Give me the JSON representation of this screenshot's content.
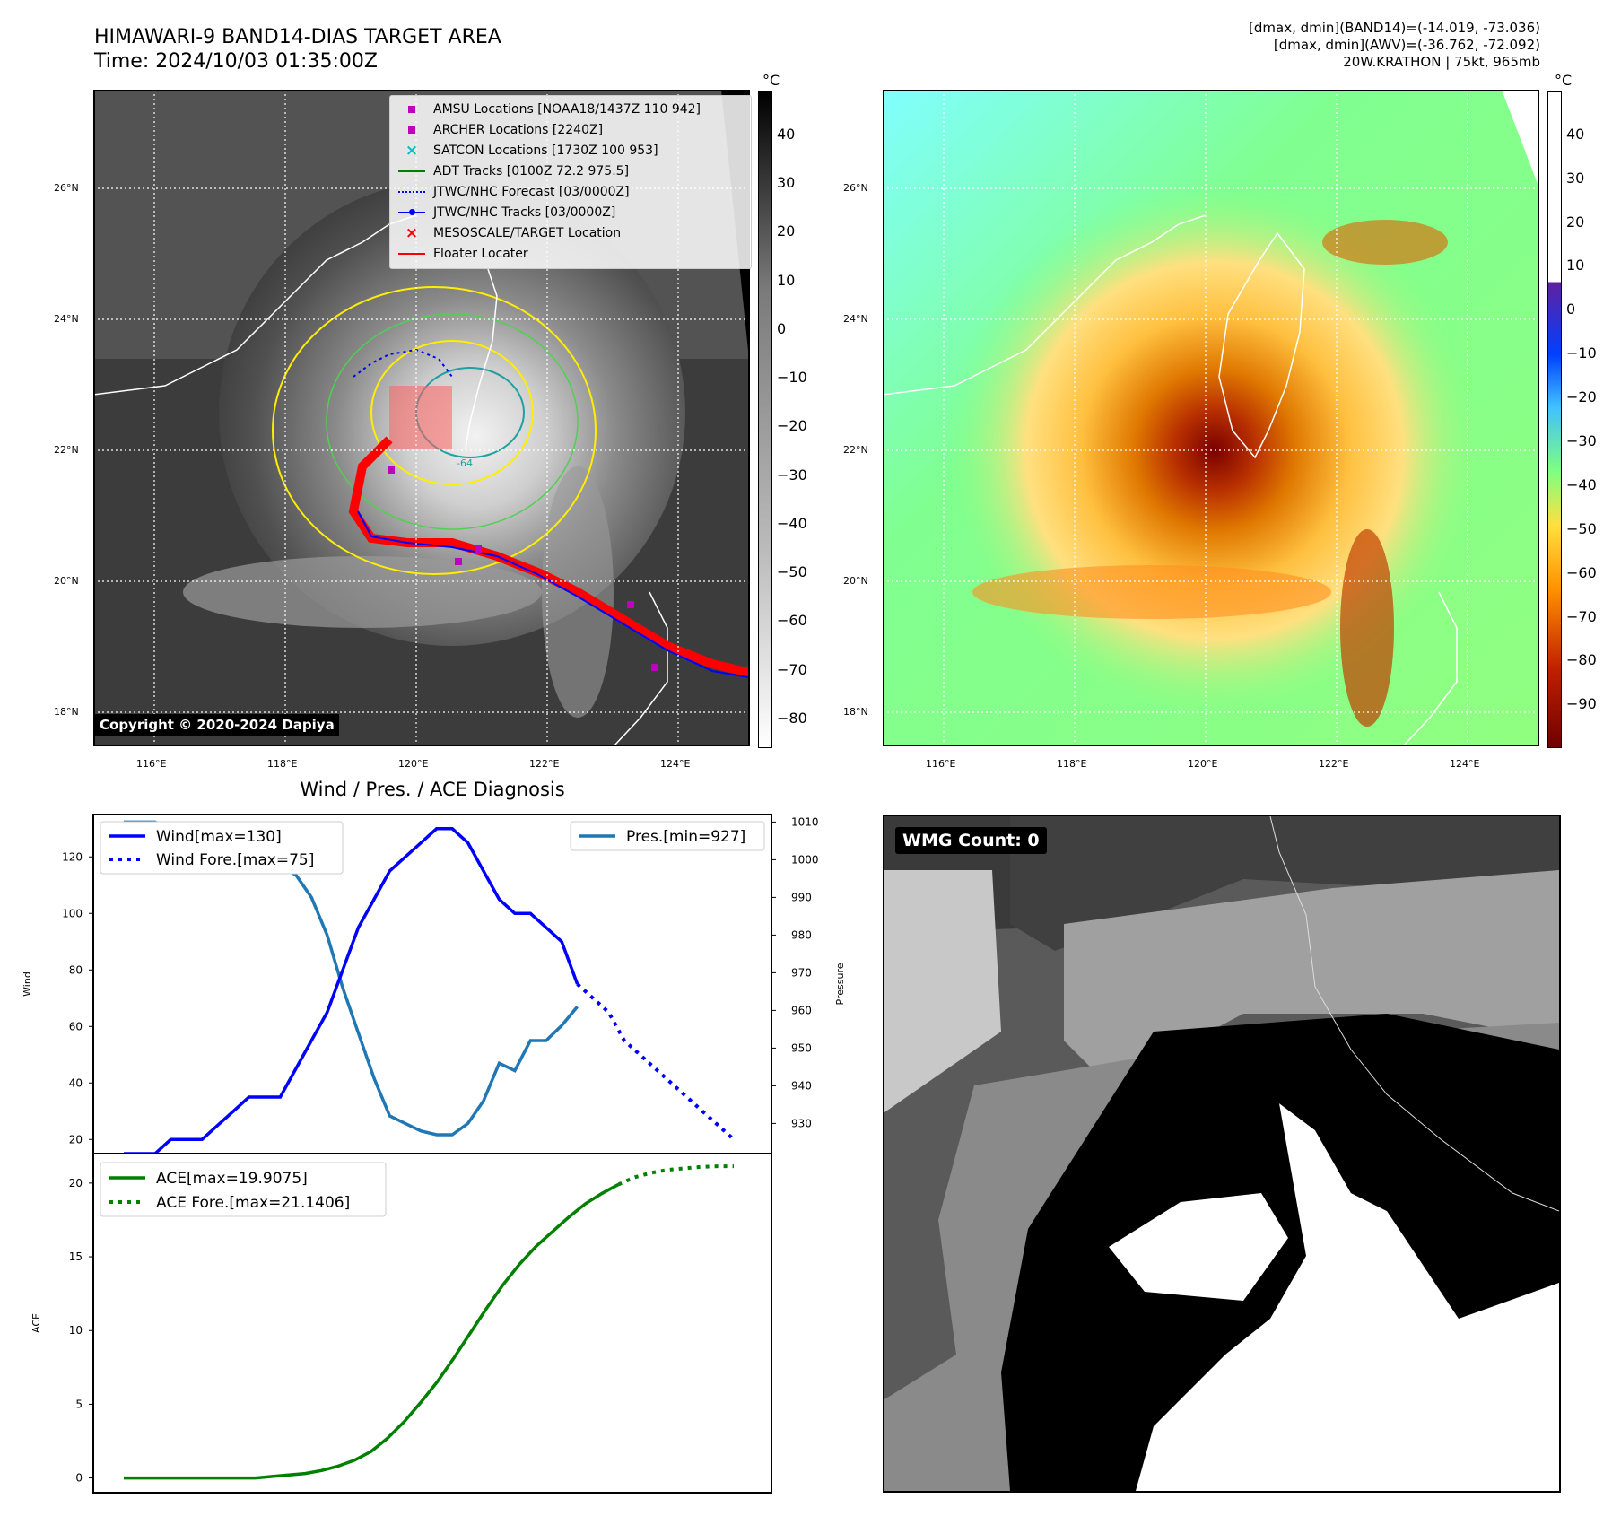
{
  "header": {
    "title_line1": "HIMAWARI-9 BAND14-DIAS TARGET AREA",
    "title_line2": "Time: 2024/10/03 01:35:00Z",
    "right_line1": "[dmax, dmin](BAND14)=(-14.019, -73.036)",
    "right_line2": "[dmax, dmin](AWV)=(-36.762, -72.092)",
    "right_line3": "20W.KRATHON | 75kt, 965mb"
  },
  "map": {
    "lat_labels": [
      "26°N",
      "24°N",
      "22°N",
      "20°N",
      "18°N"
    ],
    "lon_labels": [
      "116°E",
      "118°E",
      "120°E",
      "122°E",
      "124°E"
    ],
    "copyright": "Copyright © 2020-2024 Dapiya",
    "colorbar_unit": "°C",
    "gray_ticks": [
      "40",
      "30",
      "20",
      "10",
      "0",
      "−10",
      "−20",
      "−30",
      "−40",
      "−50",
      "−60",
      "−70",
      "−80"
    ],
    "color_ticks": [
      "40",
      "30",
      "20",
      "10",
      "0",
      "−10",
      "−20",
      "−30",
      "−40",
      "−50",
      "−60",
      "−70",
      "−80",
      "−90"
    ],
    "contour_label": "-64",
    "legend": [
      {
        "label": "AMSU Locations [NOAA18/1437Z 110 942]",
        "color": "#c000c0",
        "marker": "square"
      },
      {
        "label": "ARCHER Locations [2240Z]",
        "color": "#c000c0",
        "marker": "square"
      },
      {
        "label": "SATCON Locations [1730Z 100 953]",
        "color": "#00c0c0",
        "marker": "x"
      },
      {
        "label": "ADT Tracks [0100Z 72.2 975.5]",
        "color": "#008000",
        "marker": "line"
      },
      {
        "label": "JTWC/NHC Forecast [03/0000Z]",
        "color": "#0000ff",
        "marker": "dotted"
      },
      {
        "label": "JTWC/NHC Tracks [03/0000Z]",
        "color": "#0000ff",
        "marker": "line-dot"
      },
      {
        "label": "MESOSCALE/TARGET Location",
        "color": "#ff0000",
        "marker": "x"
      },
      {
        "label": "Floater Locater",
        "color": "#ff0000",
        "marker": "line"
      }
    ]
  },
  "wmg": {
    "label": "WMG Count: 0"
  },
  "chart_data": [
    {
      "type": "line",
      "title": "Wind / Pres. / ACE Diagnosis",
      "ylabel": "Wind",
      "y2label": "Pressure",
      "ylim": [
        15,
        135
      ],
      "y2lim": [
        922,
        1012
      ],
      "yticks": [
        20,
        40,
        60,
        80,
        100,
        120
      ],
      "y2ticks": [
        930,
        940,
        950,
        960,
        970,
        980,
        990,
        1000,
        1010
      ],
      "series": [
        {
          "name": "Wind[max=130]",
          "color": "#0000ff",
          "style": "solid",
          "values": [
            15,
            15,
            15,
            20,
            20,
            20,
            25,
            30,
            35,
            35,
            35,
            45,
            55,
            65,
            80,
            95,
            105,
            115,
            120,
            125,
            130,
            130,
            125,
            115,
            105,
            100,
            100,
            95,
            90,
            75
          ]
        },
        {
          "name": "Wind Fore.[max=75]",
          "color": "#0000ff",
          "style": "dotted",
          "values": [
            75,
            70,
            65,
            55,
            50,
            45,
            40,
            35,
            30,
            25,
            20
          ]
        },
        {
          "name": "Pres.[min=927]",
          "color": "#1f77b4",
          "style": "solid",
          "values": [
            1010,
            1010,
            1010,
            1008,
            1008,
            1006,
            1004,
            1003,
            1003,
            1000,
            998,
            996,
            990,
            980,
            966,
            954,
            942,
            932,
            930,
            928,
            927,
            927,
            930,
            936,
            946,
            944,
            952,
            952,
            956,
            961
          ]
        }
      ]
    },
    {
      "type": "line",
      "ylabel": "ACE",
      "ylim": [
        -1,
        22
      ],
      "yticks": [
        0,
        5,
        10,
        15,
        20
      ],
      "series": [
        {
          "name": "ACE[max=19.9075]",
          "color": "#008000",
          "style": "solid",
          "values": [
            0,
            0,
            0,
            0,
            0,
            0,
            0,
            0,
            0,
            0.1,
            0.2,
            0.3,
            0.5,
            0.8,
            1.2,
            1.8,
            2.7,
            3.8,
            5.1,
            6.5,
            8.1,
            9.8,
            11.5,
            13.1,
            14.5,
            15.7,
            16.7,
            17.7,
            18.6,
            19.3,
            19.9075
          ]
        },
        {
          "name": "ACE Fore.[max=21.1406]",
          "color": "#008000",
          "style": "dotted",
          "values": [
            19.9075,
            20.4,
            20.7,
            20.9,
            21.0,
            21.1,
            21.1406,
            21.1406
          ]
        }
      ]
    }
  ]
}
